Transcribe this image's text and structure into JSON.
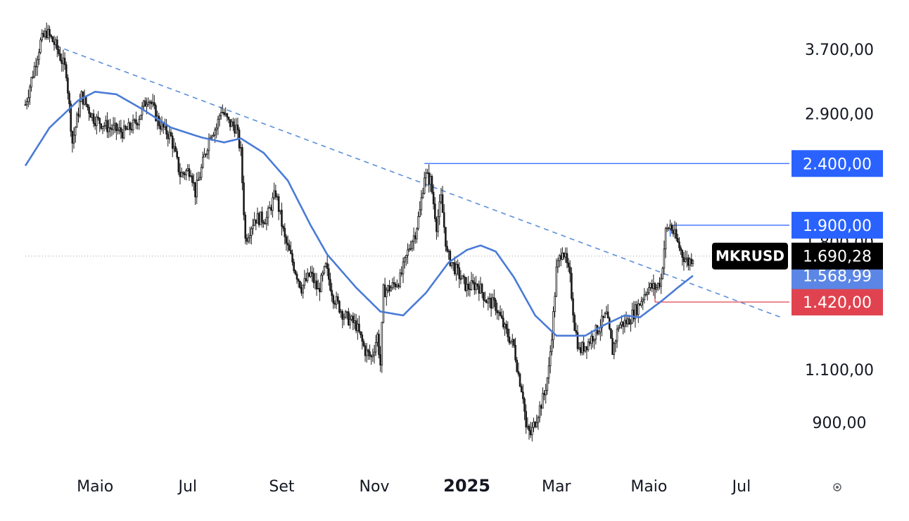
{
  "chart_data": {
    "type": "candlestick",
    "symbol": "MKRUSD",
    "last_price_label": "1.690,28",
    "ma_price_label": "1.568,99",
    "y_scale": "log",
    "ylim": [
      800,
      4000
    ],
    "y_ticks": [
      {
        "value": 3700,
        "label": "3.700,00"
      },
      {
        "value": 2900,
        "label": "2.900,00"
      },
      {
        "value": 1100,
        "label": "1.100,00"
      },
      {
        "value": 900,
        "label": "900,00"
      }
    ],
    "hidden_tick_label": "1.800,00",
    "xlim": [
      "2024-03-16",
      "2025-07-27"
    ],
    "x_ticks": [
      {
        "date": "2024-05-01",
        "label": "Maio",
        "bold": false
      },
      {
        "date": "2024-07-01",
        "label": "Jul",
        "bold": false
      },
      {
        "date": "2024-09-01",
        "label": "Set",
        "bold": false
      },
      {
        "date": "2024-11-01",
        "label": "Nov",
        "bold": false
      },
      {
        "date": "2025-01-01",
        "label": "2025",
        "bold": true
      },
      {
        "date": "2025-03-01",
        "label": "Mar",
        "bold": false
      },
      {
        "date": "2025-05-01",
        "label": "Maio",
        "bold": false
      },
      {
        "date": "2025-07-01",
        "label": "Jul",
        "bold": false
      }
    ],
    "price_anchors": [
      [
        "2024-03-16",
        3000
      ],
      [
        "2024-03-20",
        3300
      ],
      [
        "2024-03-26",
        3800
      ],
      [
        "2024-03-30",
        3950
      ],
      [
        "2024-04-05",
        3750
      ],
      [
        "2024-04-12",
        3400
      ],
      [
        "2024-04-16",
        2600
      ],
      [
        "2024-04-22",
        3100
      ],
      [
        "2024-04-30",
        2850
      ],
      [
        "2024-05-10",
        2750
      ],
      [
        "2024-05-20",
        2700
      ],
      [
        "2024-05-28",
        2800
      ],
      [
        "2024-06-05",
        3100
      ],
      [
        "2024-06-12",
        2800
      ],
      [
        "2024-06-20",
        2650
      ],
      [
        "2024-06-26",
        2300
      ],
      [
        "2024-07-03",
        2350
      ],
      [
        "2024-07-06",
        2150
      ],
      [
        "2024-07-10",
        2350
      ],
      [
        "2024-07-16",
        2700
      ],
      [
        "2024-07-20",
        2750
      ],
      [
        "2024-07-23",
        2950
      ],
      [
        "2024-07-28",
        2800
      ],
      [
        "2024-08-02",
        2750
      ],
      [
        "2024-08-05",
        2500
      ],
      [
        "2024-08-08",
        1800
      ],
      [
        "2024-08-14",
        1950
      ],
      [
        "2024-08-22",
        1950
      ],
      [
        "2024-08-28",
        2150
      ],
      [
        "2024-09-03",
        1800
      ],
      [
        "2024-09-10",
        1600
      ],
      [
        "2024-09-14",
        1500
      ],
      [
        "2024-09-20",
        1580
      ],
      [
        "2024-09-25",
        1480
      ],
      [
        "2024-09-30",
        1620
      ],
      [
        "2024-10-05",
        1450
      ],
      [
        "2024-10-12",
        1350
      ],
      [
        "2024-10-20",
        1300
      ],
      [
        "2024-10-26",
        1180
      ],
      [
        "2024-10-30",
        1150
      ],
      [
        "2024-11-03",
        1250
      ],
      [
        "2024-11-05",
        1120
      ],
      [
        "2024-11-07",
        1480
      ],
      [
        "2024-11-12",
        1500
      ],
      [
        "2024-11-18",
        1550
      ],
      [
        "2024-11-24",
        1750
      ],
      [
        "2024-11-28",
        1850
      ],
      [
        "2024-12-01",
        2000
      ],
      [
        "2024-12-04",
        2300
      ],
      [
        "2024-12-08",
        2250
      ],
      [
        "2024-12-12",
        1900
      ],
      [
        "2024-12-15",
        2100
      ],
      [
        "2024-12-19",
        1700
      ],
      [
        "2024-12-25",
        1600
      ],
      [
        "2025-01-01",
        1500
      ],
      [
        "2025-01-08",
        1520
      ],
      [
        "2025-01-14",
        1430
      ],
      [
        "2025-01-20",
        1400
      ],
      [
        "2025-01-26",
        1280
      ],
      [
        "2025-02-01",
        1200
      ],
      [
        "2025-02-04",
        1080
      ],
      [
        "2025-02-07",
        1000
      ],
      [
        "2025-02-09",
        880
      ],
      [
        "2025-02-12",
        860
      ],
      [
        "2025-02-16",
        920
      ],
      [
        "2025-02-21",
        1000
      ],
      [
        "2025-02-24",
        1100
      ],
      [
        "2025-02-27",
        1350
      ],
      [
        "2025-03-01",
        1600
      ],
      [
        "2025-03-05",
        1750
      ],
      [
        "2025-03-10",
        1550
      ],
      [
        "2025-03-13",
        1300
      ],
      [
        "2025-03-16",
        1180
      ],
      [
        "2025-03-22",
        1220
      ],
      [
        "2025-03-28",
        1280
      ],
      [
        "2025-04-03",
        1350
      ],
      [
        "2025-04-07",
        1180
      ],
      [
        "2025-04-11",
        1300
      ],
      [
        "2025-04-17",
        1320
      ],
      [
        "2025-04-24",
        1400
      ],
      [
        "2025-04-30",
        1500
      ],
      [
        "2025-05-06",
        1500
      ],
      [
        "2025-05-09",
        1550
      ],
      [
        "2025-05-12",
        1850
      ],
      [
        "2025-05-15",
        1900
      ],
      [
        "2025-05-19",
        1800
      ],
      [
        "2025-05-23",
        1700
      ],
      [
        "2025-05-27",
        1650
      ],
      [
        "2025-05-30",
        1690
      ]
    ],
    "ma_anchors": [
      [
        "2024-03-16",
        2380
      ],
      [
        "2024-04-01",
        2750
      ],
      [
        "2024-04-20",
        3050
      ],
      [
        "2024-05-01",
        3150
      ],
      [
        "2024-05-15",
        3120
      ],
      [
        "2024-06-01",
        2950
      ],
      [
        "2024-06-20",
        2750
      ],
      [
        "2024-07-10",
        2650
      ],
      [
        "2024-07-25",
        2600
      ],
      [
        "2024-08-05",
        2640
      ],
      [
        "2024-08-20",
        2500
      ],
      [
        "2024-09-05",
        2250
      ],
      [
        "2024-09-20",
        1900
      ],
      [
        "2024-10-01",
        1700
      ],
      [
        "2024-10-20",
        1500
      ],
      [
        "2024-11-05",
        1370
      ],
      [
        "2024-11-20",
        1350
      ],
      [
        "2024-12-05",
        1470
      ],
      [
        "2024-12-20",
        1650
      ],
      [
        "2025-01-01",
        1730
      ],
      [
        "2025-01-10",
        1760
      ],
      [
        "2025-01-20",
        1720
      ],
      [
        "2025-02-01",
        1560
      ],
      [
        "2025-02-15",
        1350
      ],
      [
        "2025-03-01",
        1250
      ],
      [
        "2025-03-20",
        1250
      ],
      [
        "2025-04-01",
        1300
      ],
      [
        "2025-04-15",
        1350
      ],
      [
        "2025-04-25",
        1340
      ],
      [
        "2025-05-10",
        1430
      ],
      [
        "2025-05-20",
        1500
      ],
      [
        "2025-05-30",
        1569
      ]
    ],
    "trendline": {
      "from": [
        "2024-04-05",
        3750
      ],
      "to": [
        "2025-07-27",
        1340
      ],
      "style": "dashed"
    },
    "levels": [
      {
        "value": 2400,
        "label": "2.400,00",
        "from_date": "2024-12-04",
        "color": "#2962ff"
      },
      {
        "value": 1900,
        "label": "1.900,00",
        "from_date": "2025-05-15",
        "color": "#2962ff"
      },
      {
        "value": 1420,
        "label": "1.420,00",
        "from_date": "2025-05-05",
        "color": "#e0434f"
      }
    ],
    "current_price": 1690.28,
    "ma_current": 1568.99,
    "colors": {
      "candle": "#1a1a1a",
      "ma_line": "#4a7bd6",
      "trendline": "#5b8fd9",
      "level_blue": "#2962ff",
      "level_red": "#e0434f",
      "ma_badge": "#5b86e5",
      "price_badge": "#000000"
    }
  }
}
